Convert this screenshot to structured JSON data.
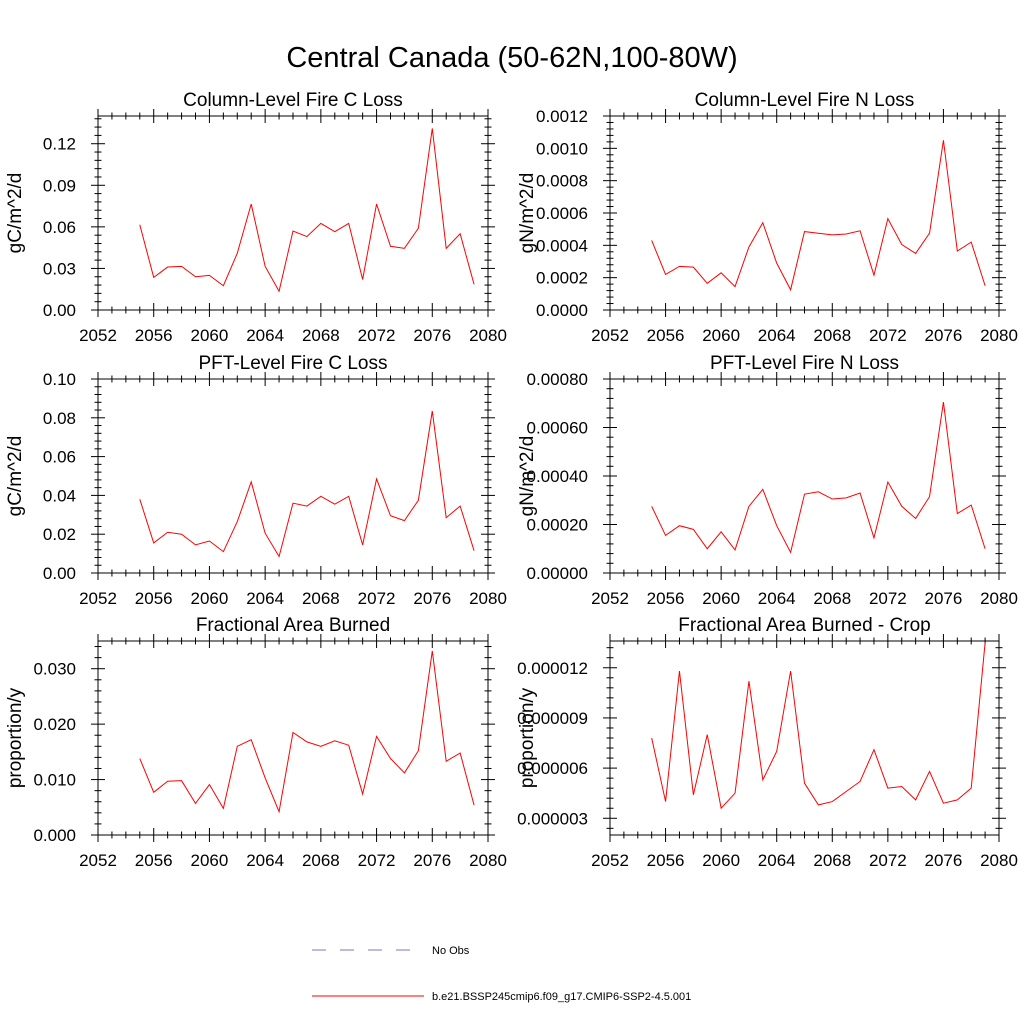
{
  "figure": {
    "title": "Central Canada (50-62N,100-80W)"
  },
  "legend": {
    "items": [
      {
        "label": "No Obs",
        "color": "#7777cc",
        "style": "dashed"
      },
      {
        "label": "b.e21.BSSP245cmip6.f09_g17.CMIP6-SSP2-4.5.001",
        "color": "#ff0000",
        "style": "solid"
      }
    ]
  },
  "chart_data": [
    {
      "type": "line",
      "title": "Column-Level Fire C Loss",
      "ylabel": "gC/m^2/d",
      "xlim": [
        2052,
        2080
      ],
      "ylim": [
        0,
        0.14
      ],
      "xticks": [
        2052,
        2056,
        2060,
        2064,
        2068,
        2072,
        2076,
        2080
      ],
      "xtick_labels": [
        "2052",
        "2056",
        "2060",
        "2064",
        "2068",
        "2072",
        "2076",
        "2080"
      ],
      "yticks": [
        0,
        0.03,
        0.06,
        0.09,
        0.12
      ],
      "ytick_labels": [
        "0.00",
        "0.03",
        "0.06",
        "0.09",
        "0.12"
      ],
      "x": [
        2055,
        2056,
        2057,
        2058,
        2059,
        2060,
        2061,
        2062,
        2063,
        2064,
        2065,
        2066,
        2067,
        2068,
        2069,
        2070,
        2071,
        2072,
        2073,
        2074,
        2075,
        2076,
        2077,
        2078,
        2079
      ],
      "series": [
        {
          "color": "#ff0000",
          "values": [
            0.0615,
            0.0235,
            0.031,
            0.0315,
            0.024,
            0.025,
            0.0175,
            0.041,
            0.0765,
            0.0315,
            0.0135,
            0.057,
            0.053,
            0.0625,
            0.0565,
            0.0625,
            0.022,
            0.0765,
            0.046,
            0.0445,
            0.059,
            0.131,
            0.0445,
            0.055,
            0.0185
          ]
        }
      ]
    },
    {
      "type": "line",
      "title": "Column-Level Fire N Loss",
      "ylabel": "gN/m^2/d",
      "xlim": [
        2052,
        2080
      ],
      "ylim": [
        0,
        0.0012
      ],
      "xticks": [
        2052,
        2056,
        2060,
        2064,
        2068,
        2072,
        2076,
        2080
      ],
      "xtick_labels": [
        "2052",
        "2056",
        "2060",
        "2064",
        "2068",
        "2072",
        "2076",
        "2080"
      ],
      "yticks": [
        0,
        0.0002,
        0.0004,
        0.0006,
        0.0008,
        0.001,
        0.0012
      ],
      "ytick_labels": [
        "0.0000",
        "0.0002",
        "0.0004",
        "0.0006",
        "0.0008",
        "0.0010",
        "0.0012"
      ],
      "x": [
        2055,
        2056,
        2057,
        2058,
        2059,
        2060,
        2061,
        2062,
        2063,
        2064,
        2065,
        2066,
        2067,
        2068,
        2069,
        2070,
        2071,
        2072,
        2073,
        2074,
        2075,
        2076,
        2077,
        2078,
        2079
      ],
      "series": [
        {
          "color": "#ff0000",
          "values": [
            0.00043,
            0.00022,
            0.00027,
            0.000265,
            0.000165,
            0.00023,
            0.000145,
            0.00039,
            0.00054,
            0.00029,
            0.000125,
            0.000485,
            0.000475,
            0.000465,
            0.00047,
            0.00049,
            0.000215,
            0.000565,
            0.000405,
            0.00035,
            0.000475,
            0.00105,
            0.000365,
            0.00042,
            0.00015
          ]
        }
      ]
    },
    {
      "type": "line",
      "title": "PFT-Level Fire C Loss",
      "ylabel": "gC/m^2/d",
      "xlim": [
        2052,
        2080
      ],
      "ylim": [
        0,
        0.1
      ],
      "xticks": [
        2052,
        2056,
        2060,
        2064,
        2068,
        2072,
        2076,
        2080
      ],
      "xtick_labels": [
        "2052",
        "2056",
        "2060",
        "2064",
        "2068",
        "2072",
        "2076",
        "2080"
      ],
      "yticks": [
        0,
        0.02,
        0.04,
        0.06,
        0.08,
        0.1
      ],
      "ytick_labels": [
        "0.00",
        "0.02",
        "0.04",
        "0.06",
        "0.08",
        "0.10"
      ],
      "x": [
        2055,
        2056,
        2057,
        2058,
        2059,
        2060,
        2061,
        2062,
        2063,
        2064,
        2065,
        2066,
        2067,
        2068,
        2069,
        2070,
        2071,
        2072,
        2073,
        2074,
        2075,
        2076,
        2077,
        2078,
        2079
      ],
      "series": [
        {
          "color": "#ff0000",
          "values": [
            0.038,
            0.0155,
            0.021,
            0.02,
            0.0145,
            0.0165,
            0.011,
            0.0265,
            0.047,
            0.0205,
            0.0085,
            0.036,
            0.0345,
            0.0395,
            0.0355,
            0.0395,
            0.0145,
            0.0485,
            0.0295,
            0.027,
            0.0375,
            0.0835,
            0.0285,
            0.0345,
            0.0115
          ]
        }
      ]
    },
    {
      "type": "line",
      "title": "PFT-Level Fire N Loss",
      "ylabel": "gN/m^2/d",
      "xlim": [
        2052,
        2080
      ],
      "ylim": [
        0,
        0.0008
      ],
      "xticks": [
        2052,
        2056,
        2060,
        2064,
        2068,
        2072,
        2076,
        2080
      ],
      "xtick_labels": [
        "2052",
        "2056",
        "2060",
        "2064",
        "2068",
        "2072",
        "2076",
        "2080"
      ],
      "yticks": [
        0,
        0.0002,
        0.0004,
        0.0006,
        0.0008
      ],
      "ytick_labels": [
        "0.00000",
        "0.00020",
        "0.00040",
        "0.00060",
        "0.00080"
      ],
      "x": [
        2055,
        2056,
        2057,
        2058,
        2059,
        2060,
        2061,
        2062,
        2063,
        2064,
        2065,
        2066,
        2067,
        2068,
        2069,
        2070,
        2071,
        2072,
        2073,
        2074,
        2075,
        2076,
        2077,
        2078,
        2079
      ],
      "series": [
        {
          "color": "#ff0000",
          "values": [
            0.000275,
            0.000155,
            0.000195,
            0.00018,
            0.0001,
            0.00017,
            9.5e-05,
            0.000275,
            0.000345,
            0.000195,
            8.5e-05,
            0.000325,
            0.000335,
            0.000305,
            0.00031,
            0.00033,
            0.000145,
            0.000375,
            0.000275,
            0.000225,
            0.000315,
            0.000705,
            0.000245,
            0.00028,
            0.0001
          ]
        }
      ]
    },
    {
      "type": "line",
      "title": "Fractional Area Burned",
      "ylabel": "proportion/y",
      "xlim": [
        2052,
        2080
      ],
      "ylim": [
        0,
        0.035
      ],
      "xticks": [
        2052,
        2056,
        2060,
        2064,
        2068,
        2072,
        2076,
        2080
      ],
      "xtick_labels": [
        "2052",
        "2056",
        "2060",
        "2064",
        "2068",
        "2072",
        "2076",
        "2080"
      ],
      "yticks": [
        0,
        0.01,
        0.02,
        0.03
      ],
      "ytick_labels": [
        "0.000",
        "0.010",
        "0.020",
        "0.030"
      ],
      "x": [
        2055,
        2056,
        2057,
        2058,
        2059,
        2060,
        2061,
        2062,
        2063,
        2064,
        2065,
        2066,
        2067,
        2068,
        2069,
        2070,
        2071,
        2072,
        2073,
        2074,
        2075,
        2076,
        2077,
        2078,
        2079
      ],
      "series": [
        {
          "color": "#ff0000",
          "values": [
            0.0138,
            0.0077,
            0.0097,
            0.0098,
            0.0057,
            0.0091,
            0.0048,
            0.016,
            0.0172,
            0.0103,
            0.0042,
            0.0185,
            0.0168,
            0.016,
            0.017,
            0.0162,
            0.0074,
            0.0178,
            0.0138,
            0.0112,
            0.0152,
            0.0332,
            0.0133,
            0.0148,
            0.0054
          ]
        }
      ]
    },
    {
      "type": "line",
      "title": "Fractional Area Burned - Crop",
      "ylabel": "proportion/y",
      "xlim": [
        2052,
        2080
      ],
      "ylim": [
        2e-06,
        1.36e-05
      ],
      "xticks": [
        2052,
        2056,
        2060,
        2064,
        2068,
        2072,
        2076,
        2080
      ],
      "xtick_labels": [
        "2052",
        "2056",
        "2060",
        "2064",
        "2068",
        "2072",
        "2076",
        "2080"
      ],
      "yticks": [
        3e-06,
        6e-06,
        9e-06,
        1.2e-05
      ],
      "ytick_labels": [
        "0.000003",
        "0.000006",
        "0.000009",
        "0.000012"
      ],
      "x": [
        2055,
        2056,
        2057,
        2058,
        2059,
        2060,
        2061,
        2062,
        2063,
        2064,
        2065,
        2066,
        2067,
        2068,
        2069,
        2070,
        2071,
        2072,
        2073,
        2074,
        2075,
        2076,
        2077,
        2078,
        2079
      ],
      "series": [
        {
          "color": "#ff0000",
          "values": [
            7.8e-06,
            4e-06,
            1.18e-05,
            4.4e-06,
            8e-06,
            3.6e-06,
            4.5e-06,
            1.12e-05,
            5.3e-06,
            7e-06,
            1.18e-05,
            5.1e-06,
            3.8e-06,
            4e-06,
            4.6e-06,
            5.2e-06,
            7.1e-06,
            4.8e-06,
            4.9e-06,
            4.1e-06,
            5.8e-06,
            3.9e-06,
            4.1e-06,
            4.8e-06,
            1.35e-05
          ]
        }
      ]
    }
  ]
}
